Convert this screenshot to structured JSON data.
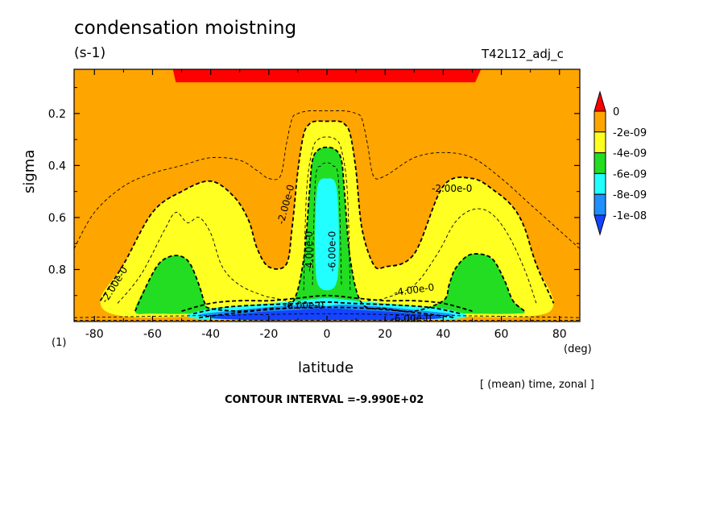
{
  "header": {
    "title": "condensation moistning",
    "units": "(s-1)",
    "run_label": "T42L12_adj_c"
  },
  "footer": {
    "averaging_note": "[ (mean) time, zonal ]",
    "contour_interval": "CONTOUR INTERVAL =-9.990E+02"
  },
  "chart_data": {
    "type": "contour",
    "xlabel": "latitude",
    "x_unit": "(deg)",
    "ylabel": "sigma",
    "y_unit": "(1)",
    "xlim": [
      -87,
      87
    ],
    "ylim": [
      1.0,
      0.03
    ],
    "x_ticks": [
      -80,
      -60,
      -40,
      -20,
      0,
      20,
      40,
      60,
      80
    ],
    "x_tick_labels": [
      "-80",
      "-60",
      "-40",
      "-20",
      "0",
      "20",
      "40",
      "60",
      "80"
    ],
    "y_ticks": [
      0.2,
      0.4,
      0.6,
      0.8
    ],
    "y_tick_labels": [
      "0.2",
      "0.4",
      "0.6",
      "0.8"
    ],
    "colorbar": {
      "labels": [
        "0",
        "-2e-09",
        "-4e-09",
        "-6e-09",
        "-8e-09",
        "-1e-08"
      ],
      "colors": [
        "#ff0000",
        "#ffa500",
        "#ffff22",
        "#22dd22",
        "#22ffff",
        "#1e90ff",
        "#1444ff"
      ]
    },
    "contour_labels": [
      {
        "text": "-2.00e-0",
        "x": -73,
        "y": 0.86,
        "angle": -58
      },
      {
        "text": "-2.00e-0",
        "x": -14,
        "y": 0.55,
        "angle": -75
      },
      {
        "text": "-2.00e-0",
        "x": 43,
        "y": 0.49,
        "angle": 0
      },
      {
        "text": "-4.00e-0",
        "x": -6,
        "y": 0.73,
        "angle": -90
      },
      {
        "text": "-6.00e-0",
        "x": 2,
        "y": 0.73,
        "angle": -90
      },
      {
        "text": "-4.00e-0",
        "x": 30,
        "y": 0.88,
        "angle": -8
      },
      {
        "text": "-6.00e-0",
        "x": -8,
        "y": 0.94,
        "angle": 0
      },
      {
        "text": "-6.00e-0",
        "x": 29,
        "y": 0.99,
        "angle": 0
      }
    ],
    "regions": [
      {
        "level": "0",
        "color": "#ff0000",
        "lat": [
          -53,
          -52,
          51,
          53
        ],
        "sig": [
          0.03,
          0.08,
          0.08,
          0.03
        ]
      },
      {
        "level": "-2e-09",
        "color": "#ffa500",
        "lat": [
          -87,
          87,
          87,
          -87
        ],
        "sig": [
          0.03,
          0.03,
          1.0,
          1.0
        ]
      },
      {
        "level": "-4e-09",
        "color": "#ffff22",
        "lat": [
          -78,
          -70,
          -60,
          -50,
          -40,
          -32,
          -27,
          -24,
          -20,
          -14,
          -12,
          -10,
          -8,
          -6,
          -4,
          0,
          4,
          6,
          8,
          10,
          12,
          16,
          20,
          30,
          40,
          50,
          58,
          64,
          68,
          72,
          78,
          70,
          40,
          20,
          0,
          -20,
          -40,
          -70
        ],
        "sig": [
          0.92,
          0.78,
          0.58,
          0.5,
          0.46,
          0.52,
          0.61,
          0.72,
          0.79,
          0.78,
          0.64,
          0.42,
          0.28,
          0.24,
          0.23,
          0.23,
          0.23,
          0.24,
          0.28,
          0.42,
          0.64,
          0.78,
          0.79,
          0.74,
          0.48,
          0.45,
          0.5,
          0.56,
          0.64,
          0.78,
          0.93,
          0.98,
          0.98,
          0.98,
          0.98,
          0.98,
          0.98,
          0.98
        ]
      },
      {
        "level": "-6e-09",
        "color": "#22dd22",
        "lat": [
          -66,
          -62,
          -58,
          -54,
          -50,
          -47,
          -44,
          -42,
          -40,
          -30,
          -20,
          -12,
          -8,
          -6,
          -5,
          -3,
          0,
          3,
          5,
          6,
          8,
          12,
          20,
          30,
          40,
          42,
          44,
          48,
          52,
          57,
          61,
          64,
          68,
          64,
          40,
          20,
          0,
          -20,
          -40,
          -60
        ],
        "sig": [
          0.96,
          0.86,
          0.78,
          0.75,
          0.75,
          0.78,
          0.86,
          0.93,
          0.95,
          0.96,
          0.95,
          0.93,
          0.76,
          0.5,
          0.38,
          0.34,
          0.33,
          0.34,
          0.38,
          0.5,
          0.76,
          0.93,
          0.95,
          0.96,
          0.92,
          0.86,
          0.8,
          0.75,
          0.74,
          0.76,
          0.84,
          0.92,
          0.96,
          0.97,
          0.97,
          0.97,
          0.97,
          0.97,
          0.97,
          0.97
        ]
      },
      {
        "level": "-8e-09",
        "color": "#22ffff",
        "lat": [
          -4,
          -3,
          0,
          3,
          4,
          4,
          3,
          0,
          -3,
          -4
        ],
        "sig": [
          0.6,
          0.47,
          0.45,
          0.47,
          0.6,
          0.78,
          0.86,
          0.88,
          0.86,
          0.78
        ]
      },
      {
        "level": "-8e-09",
        "color": "#22ffff",
        "lat": [
          -48,
          -40,
          -30,
          -20,
          -10,
          0,
          10,
          20,
          30,
          40,
          48,
          44,
          30,
          10,
          0,
          -10,
          -30,
          -44
        ],
        "sig": [
          0.975,
          0.95,
          0.94,
          0.93,
          0.92,
          0.91,
          0.92,
          0.93,
          0.94,
          0.95,
          0.975,
          0.99,
          0.995,
          0.995,
          0.995,
          0.995,
          0.995,
          0.99
        ]
      },
      {
        "level": "-1e-08",
        "color": "#1e90ff",
        "lat": [
          -44,
          -30,
          -15,
          -5,
          0,
          5,
          15,
          30,
          44,
          30,
          15,
          0,
          -15,
          -30
        ],
        "sig": [
          0.975,
          0.955,
          0.94,
          0.935,
          0.94,
          0.935,
          0.94,
          0.955,
          0.975,
          0.99,
          0.99,
          0.99,
          0.99,
          0.99
        ]
      },
      {
        "level": "below",
        "color": "#1444ff",
        "lat": [
          -40,
          -25,
          -10,
          -3,
          3,
          10,
          25,
          40,
          25,
          10,
          0,
          -10,
          -25
        ],
        "sig": [
          0.985,
          0.965,
          0.955,
          0.95,
          0.95,
          0.955,
          0.965,
          0.985,
          0.995,
          0.995,
          0.995,
          0.995,
          0.995
        ]
      }
    ],
    "contour_lines": [
      {
        "style": "dash-thin",
        "lat": [
          -87,
          -80,
          -70,
          -60,
          -50,
          -40,
          -30,
          -24,
          -20,
          -16,
          -14,
          -12,
          -10,
          -6,
          0,
          6,
          10,
          12,
          14,
          16,
          20,
          30,
          40,
          50,
          60,
          70,
          80,
          87
        ],
        "sig": [
          0.72,
          0.58,
          0.48,
          0.43,
          0.4,
          0.37,
          0.38,
          0.42,
          0.45,
          0.44,
          0.32,
          0.22,
          0.2,
          0.19,
          0.19,
          0.19,
          0.2,
          0.22,
          0.32,
          0.44,
          0.44,
          0.37,
          0.35,
          0.37,
          0.45,
          0.55,
          0.65,
          0.72
        ]
      },
      {
        "style": "dash-thick",
        "lat": [
          -78,
          -70,
          -60,
          -50,
          -40,
          -32,
          -27,
          -24,
          -20,
          -14,
          -12,
          -10,
          -8,
          -6,
          -4,
          0,
          4,
          6,
          8,
          10,
          12,
          16,
          20,
          30,
          40,
          50,
          58,
          64,
          68,
          72,
          78
        ],
        "sig": [
          0.92,
          0.78,
          0.58,
          0.5,
          0.46,
          0.52,
          0.61,
          0.72,
          0.79,
          0.78,
          0.64,
          0.42,
          0.28,
          0.24,
          0.23,
          0.23,
          0.23,
          0.24,
          0.28,
          0.42,
          0.64,
          0.78,
          0.79,
          0.74,
          0.48,
          0.45,
          0.5,
          0.56,
          0.64,
          0.78,
          0.93
        ]
      },
      {
        "style": "dash-thin",
        "lat": [
          -72,
          -64,
          -56,
          -52,
          -48,
          -44,
          -40,
          -36,
          -30,
          -22,
          -18,
          -14
        ],
        "sig": [
          0.93,
          0.82,
          0.65,
          0.58,
          0.62,
          0.6,
          0.66,
          0.79,
          0.86,
          0.9,
          0.91,
          0.92
        ]
      },
      {
        "style": "dash-thin",
        "lat": [
          -8,
          -7,
          -5,
          -3,
          0,
          3,
          5,
          7,
          8
        ],
        "sig": [
          0.88,
          0.5,
          0.34,
          0.3,
          0.29,
          0.3,
          0.34,
          0.5,
          0.88
        ]
      },
      {
        "style": "dash-thin",
        "lat": [
          14,
          20,
          30,
          38,
          44,
          50,
          56,
          62,
          68,
          72
        ],
        "sig": [
          0.92,
          0.91,
          0.86,
          0.74,
          0.62,
          0.57,
          0.58,
          0.66,
          0.8,
          0.93
        ]
      },
      {
        "style": "dash-thick",
        "lat": [
          -66,
          -62,
          -58,
          -54,
          -50,
          -47,
          -44,
          -42,
          -40,
          -30,
          -20,
          -12,
          -8,
          -6,
          -5,
          -3,
          0,
          3,
          5,
          6,
          8,
          12,
          20,
          30,
          40,
          42,
          44,
          48,
          52,
          57,
          61,
          64,
          68
        ],
        "sig": [
          0.96,
          0.86,
          0.78,
          0.75,
          0.75,
          0.78,
          0.86,
          0.93,
          0.95,
          0.96,
          0.95,
          0.93,
          0.76,
          0.5,
          0.38,
          0.34,
          0.33,
          0.34,
          0.38,
          0.5,
          0.76,
          0.93,
          0.95,
          0.96,
          0.92,
          0.86,
          0.8,
          0.75,
          0.74,
          0.76,
          0.84,
          0.92,
          0.96
        ]
      },
      {
        "style": "dash-thin",
        "lat": [
          -5,
          -4,
          -2,
          0,
          2,
          4,
          5
        ],
        "sig": [
          0.86,
          0.46,
          0.4,
          0.39,
          0.4,
          0.46,
          0.86
        ]
      },
      {
        "style": "dash-thick",
        "lat": [
          -50,
          -40,
          -30,
          -20,
          -10,
          0,
          10,
          20,
          30,
          40,
          50
        ],
        "sig": [
          0.96,
          0.93,
          0.92,
          0.92,
          0.91,
          0.9,
          0.91,
          0.92,
          0.92,
          0.93,
          0.96
        ]
      },
      {
        "style": "dash-thick",
        "lat": [
          -46,
          -35,
          -20,
          -8,
          0,
          8,
          20,
          35,
          46
        ],
        "sig": [
          0.97,
          0.945,
          0.935,
          0.93,
          0.925,
          0.93,
          0.935,
          0.945,
          0.97
        ]
      },
      {
        "style": "dash-thick",
        "lat": [
          -44,
          -30,
          -15,
          0,
          15,
          30,
          44
        ],
        "sig": [
          0.985,
          0.965,
          0.95,
          0.945,
          0.95,
          0.965,
          0.985
        ]
      },
      {
        "style": "dash-thin",
        "lat": [
          -87,
          -60,
          -30,
          0,
          30,
          60,
          87
        ],
        "sig": [
          0.985,
          0.98,
          0.975,
          0.97,
          0.975,
          0.98,
          0.985
        ]
      },
      {
        "style": "dash-thin",
        "lat": [
          -87,
          87
        ],
        "sig": [
          0.995,
          0.995
        ]
      }
    ]
  }
}
